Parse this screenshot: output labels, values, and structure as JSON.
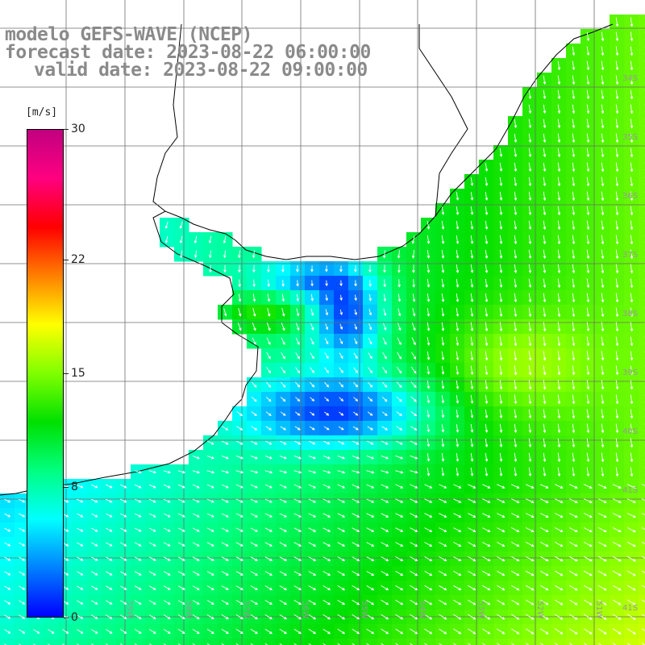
{
  "title": {
    "line1": "modelo GEFS-WAVE (NCEP)",
    "line2": "forecast date: 2023-08-22 06:00:00",
    "line3": "valid date: 2023-08-22 09:00:00"
  },
  "colorbar": {
    "unit": "[m/s]",
    "min": 0,
    "max": 30,
    "ticks": [
      {
        "label": "30",
        "value": 30
      },
      {
        "label": "22",
        "value": 22
      },
      {
        "label": "15",
        "value": 15
      },
      {
        "label": "8",
        "value": 8
      },
      {
        "label": "0",
        "value": 0
      }
    ],
    "colors": [
      "#0000ff",
      "#0080ff",
      "#00ffff",
      "#00ff80",
      "#00e000",
      "#80ff00",
      "#ffff00",
      "#ff8000",
      "#ff0000",
      "#ff0080",
      "#c00080"
    ]
  },
  "grid": {
    "lat_labels": [
      "34S",
      "35S",
      "36S",
      "37S",
      "38S",
      "39S",
      "40S",
      "41S"
    ],
    "lon_labels": [
      "59W",
      "58W",
      "57W",
      "56W",
      "55W",
      "54W",
      "53W",
      "52W",
      "51W"
    ]
  },
  "colors": {
    "grid_line": "#6e6e6e",
    "coast_line": "#000000",
    "arrow": "#ffffff",
    "title_text": "#8a8a8a"
  }
}
